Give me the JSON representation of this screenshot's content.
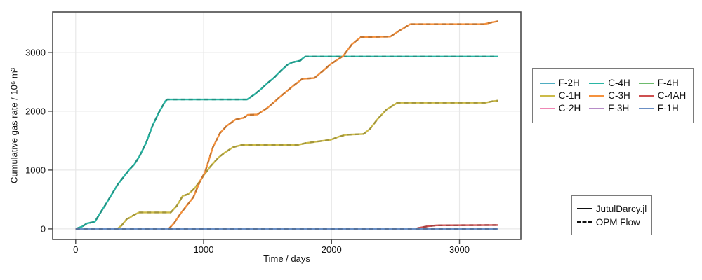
{
  "figure": {
    "background": "#ffffff",
    "spine_color": "#4a4a4a",
    "grid_color": "#e8e8e8"
  },
  "axes": {
    "xlabel": "Time / days",
    "ylabel": "Cumulative gas rate / 10⁶ m³"
  },
  "legend_wells": {
    "items": [
      {
        "label": "F-2H",
        "color": "#4fadc1"
      },
      {
        "label": "C-4H",
        "color": "#29b6a4"
      },
      {
        "label": "F-4H",
        "color": "#6dbb6d"
      },
      {
        "label": "C-1H",
        "color": "#ccbb49"
      },
      {
        "label": "C-3H",
        "color": "#f5923e"
      },
      {
        "label": "C-4AH",
        "color": "#ce5050"
      },
      {
        "label": "C-2H",
        "color": "#ef87b5"
      },
      {
        "label": "F-3H",
        "color": "#b78cc8"
      },
      {
        "label": "F-1H",
        "color": "#6b8fc4"
      }
    ]
  },
  "legend_sim": {
    "items": [
      {
        "label": "JutulDarcy.jl",
        "style": "solid"
      },
      {
        "label": "OPM Flow",
        "style": "dashed"
      }
    ]
  },
  "chart_data": {
    "type": "line",
    "title": "",
    "xlabel": "Time / days",
    "ylabel": "Cumulative gas rate / 10⁶ m³",
    "xlim": [
      -180,
      3480
    ],
    "ylim": [
      -180,
      3690
    ],
    "x_ticks": [
      0,
      1000,
      2000,
      3000
    ],
    "y_ticks": [
      0,
      1000,
      2000,
      3000
    ],
    "grid": true,
    "legend_position": "right-outside",
    "variants": [
      {
        "name": "JutulDarcy.jl",
        "style": "solid"
      },
      {
        "name": "OPM Flow",
        "style": "dashed"
      }
    ],
    "series": [
      {
        "name": "F-2H",
        "color": "#4fadc1",
        "points": [
          [
            0,
            0
          ],
          [
            3300,
            0
          ]
        ]
      },
      {
        "name": "C-1H",
        "color": "#ccbb49",
        "points": [
          [
            0,
            0
          ],
          [
            325,
            0
          ],
          [
            360,
            60
          ],
          [
            400,
            170
          ],
          [
            420,
            185
          ],
          [
            450,
            230
          ],
          [
            495,
            280
          ],
          [
            743,
            280
          ],
          [
            790,
            390
          ],
          [
            836,
            560
          ],
          [
            880,
            590
          ],
          [
            930,
            690
          ],
          [
            974,
            820
          ],
          [
            1000,
            910
          ],
          [
            1060,
            1080
          ],
          [
            1120,
            1220
          ],
          [
            1167,
            1300
          ],
          [
            1230,
            1390
          ],
          [
            1304,
            1430
          ],
          [
            1740,
            1430
          ],
          [
            1800,
            1460
          ],
          [
            1900,
            1490
          ],
          [
            1992,
            1515
          ],
          [
            2060,
            1570
          ],
          [
            2113,
            1600
          ],
          [
            2251,
            1615
          ],
          [
            2300,
            1700
          ],
          [
            2361,
            1870
          ],
          [
            2430,
            2030
          ],
          [
            2515,
            2145
          ],
          [
            3203,
            2145
          ],
          [
            3260,
            2170
          ],
          [
            3300,
            2180
          ]
        ]
      },
      {
        "name": "C-2H",
        "color": "#ef87b5",
        "points": [
          [
            0,
            0
          ],
          [
            3300,
            0
          ]
        ]
      },
      {
        "name": "C-4H",
        "color": "#29b6a4",
        "points": [
          [
            0,
            0
          ],
          [
            50,
            40
          ],
          [
            90,
            95
          ],
          [
            150,
            120
          ],
          [
            200,
            300
          ],
          [
            230,
            400
          ],
          [
            280,
            580
          ],
          [
            330,
            760
          ],
          [
            380,
            900
          ],
          [
            420,
            1010
          ],
          [
            460,
            1100
          ],
          [
            500,
            1240
          ],
          [
            550,
            1460
          ],
          [
            600,
            1750
          ],
          [
            650,
            1980
          ],
          [
            700,
            2170
          ],
          [
            715,
            2200
          ],
          [
            1340,
            2200
          ],
          [
            1400,
            2290
          ],
          [
            1450,
            2380
          ],
          [
            1500,
            2480
          ],
          [
            1550,
            2570
          ],
          [
            1600,
            2680
          ],
          [
            1655,
            2790
          ],
          [
            1690,
            2830
          ],
          [
            1755,
            2860
          ],
          [
            1775,
            2900
          ],
          [
            1795,
            2930
          ],
          [
            3300,
            2930
          ]
        ]
      },
      {
        "name": "C-3H",
        "color": "#f5923e",
        "points": [
          [
            0,
            0
          ],
          [
            727,
            0
          ],
          [
            770,
            100
          ],
          [
            820,
            260
          ],
          [
            870,
            400
          ],
          [
            920,
            540
          ],
          [
            974,
            820
          ],
          [
            1010,
            960
          ],
          [
            1073,
            1390
          ],
          [
            1128,
            1630
          ],
          [
            1180,
            1750
          ],
          [
            1250,
            1860
          ],
          [
            1315,
            1890
          ],
          [
            1345,
            1940
          ],
          [
            1420,
            1945
          ],
          [
            1500,
            2060
          ],
          [
            1600,
            2250
          ],
          [
            1700,
            2430
          ],
          [
            1772,
            2550
          ],
          [
            1866,
            2565
          ],
          [
            1930,
            2680
          ],
          [
            1992,
            2800
          ],
          [
            2091,
            2940
          ],
          [
            2160,
            3140
          ],
          [
            2229,
            3260
          ],
          [
            2460,
            3270
          ],
          [
            2530,
            3370
          ],
          [
            2614,
            3480
          ],
          [
            3192,
            3480
          ],
          [
            3260,
            3515
          ],
          [
            3300,
            3530
          ]
        ]
      },
      {
        "name": "F-3H",
        "color": "#b78cc8",
        "points": [
          [
            0,
            0
          ],
          [
            3300,
            0
          ]
        ]
      },
      {
        "name": "F-4H",
        "color": "#6dbb6d",
        "points": [
          [
            0,
            0
          ],
          [
            3300,
            0
          ]
        ]
      },
      {
        "name": "C-4AH",
        "color": "#ce5050",
        "points": [
          [
            0,
            0
          ],
          [
            2650,
            0
          ],
          [
            2700,
            25
          ],
          [
            2760,
            48
          ],
          [
            2820,
            60
          ],
          [
            3300,
            65
          ]
        ]
      },
      {
        "name": "F-1H",
        "color": "#6b8fc4",
        "points": [
          [
            0,
            0
          ],
          [
            3300,
            0
          ]
        ]
      }
    ]
  }
}
